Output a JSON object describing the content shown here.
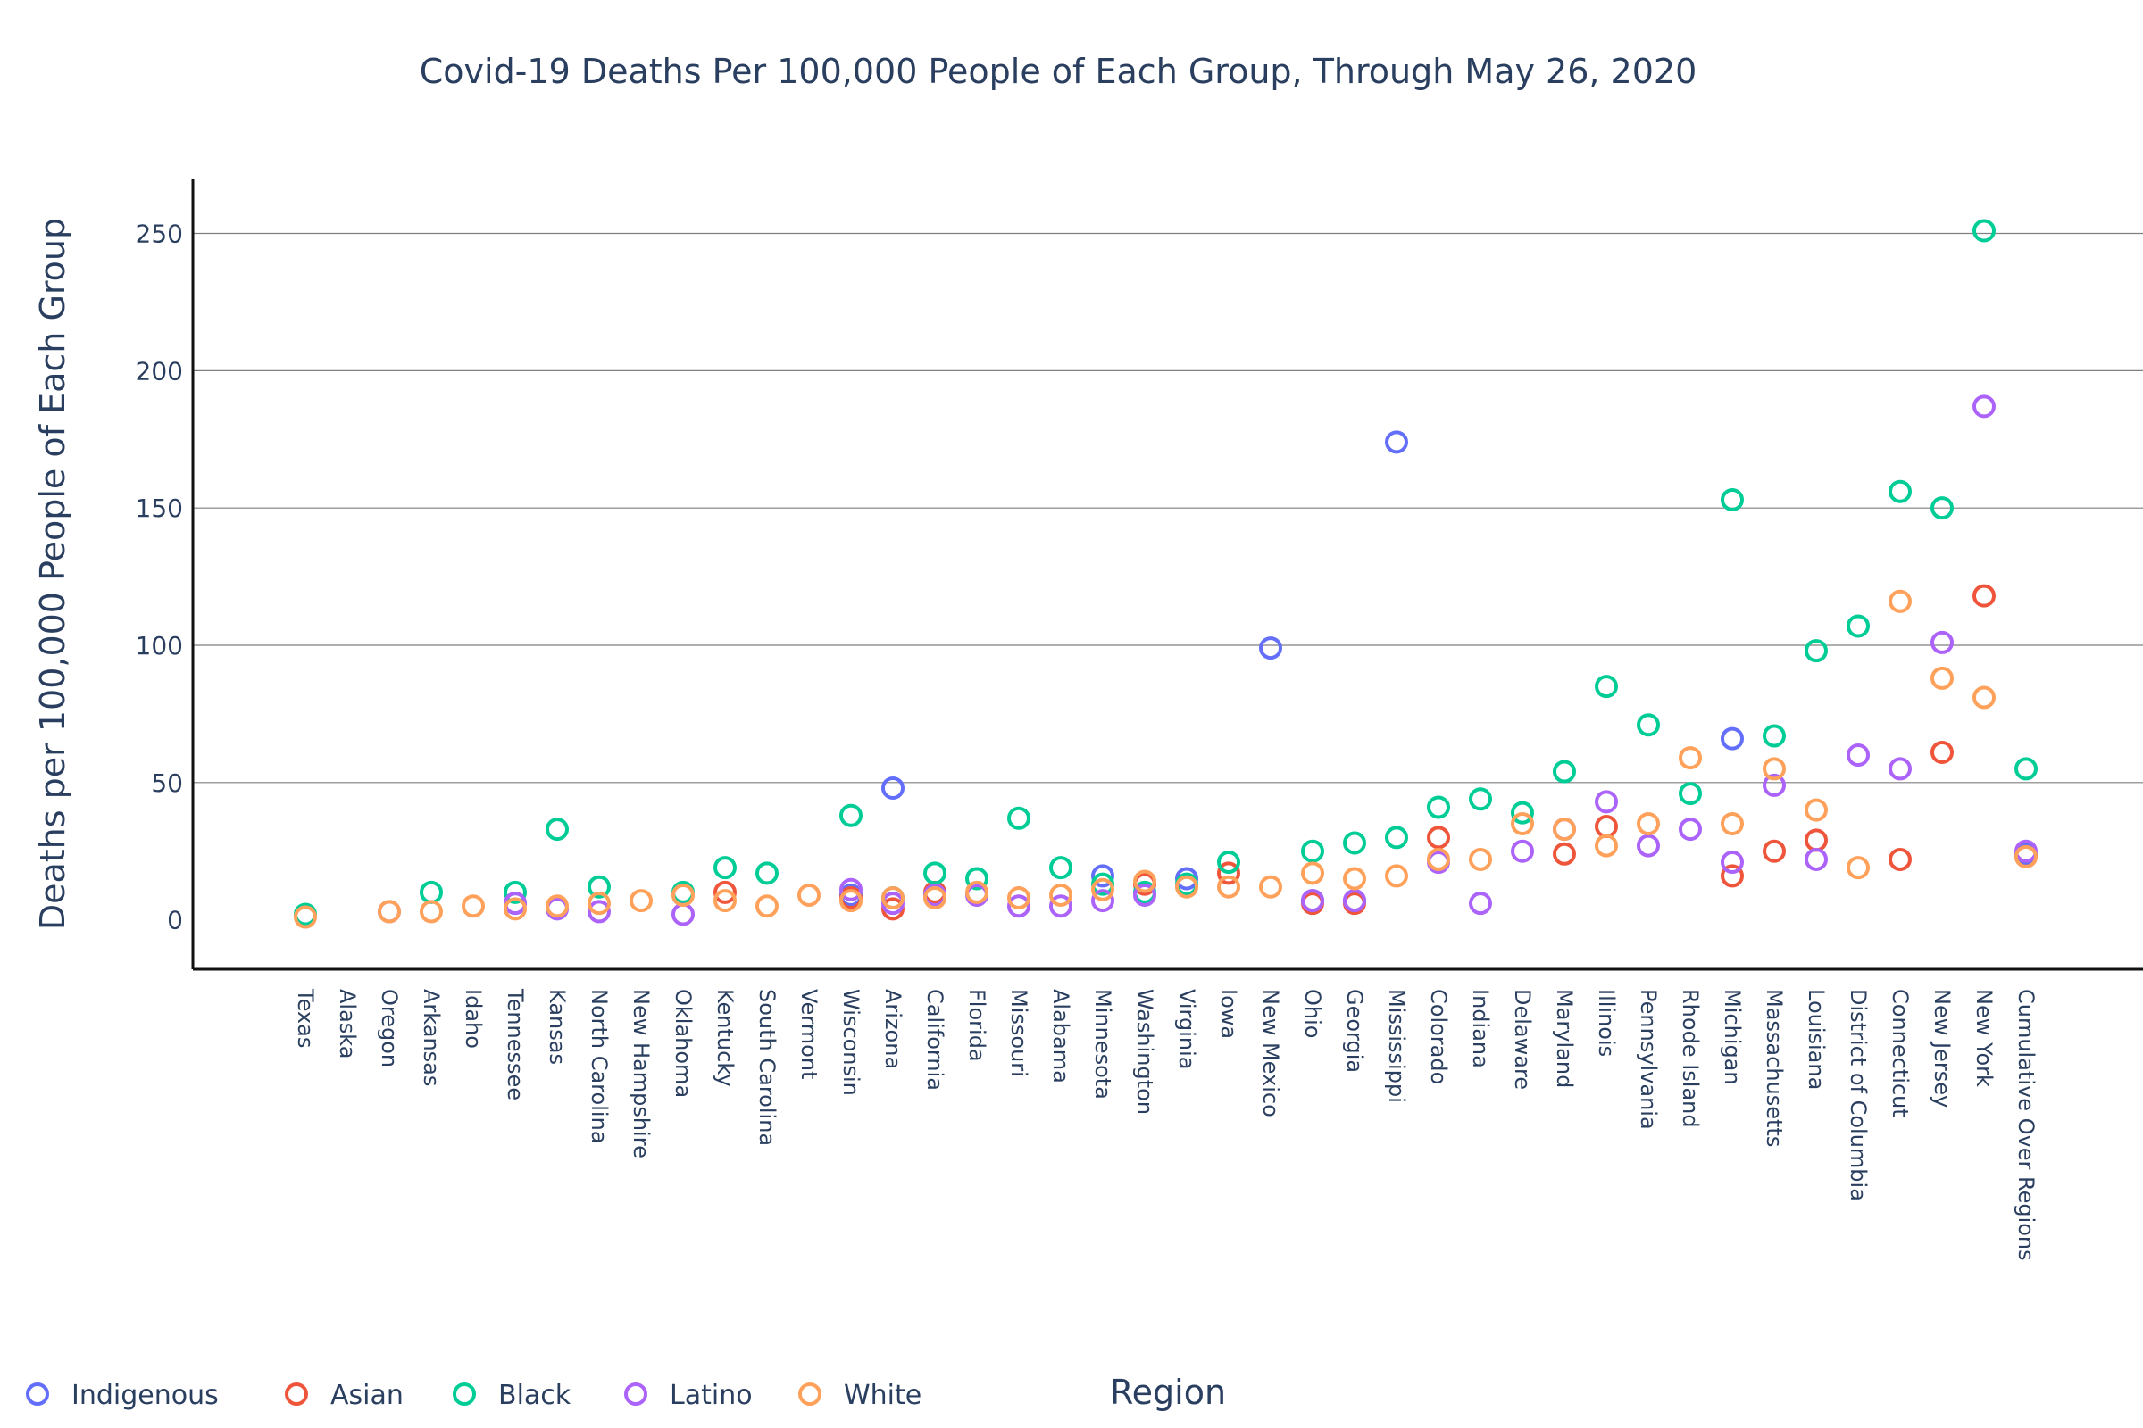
{
  "chart_data": {
    "type": "scatter",
    "title": "Covid-19 Deaths Per 100,000 People of Each Group, Through May 26, 2020",
    "xlabel": "Region",
    "ylabel": "Deaths per 100,000 People of Each Group",
    "ylim": [
      -18,
      270
    ],
    "yticks": [
      0,
      50,
      100,
      150,
      200,
      250
    ],
    "grid": true,
    "legend_position": "bottom-left",
    "categories": [
      "Texas",
      "Alaska",
      "Oregon",
      "Arkansas",
      "Idaho",
      "Tennessee",
      "Kansas",
      "North Carolina",
      "New Hampshire",
      "Oklahoma",
      "Kentucky",
      "South Carolina",
      "Vermont",
      "Wisconsin",
      "Arizona",
      "California",
      "Florida",
      "Missouri",
      "Alabama",
      "Minnesota",
      "Washington",
      "Virginia",
      "Iowa",
      "New Mexico",
      "Ohio",
      "Georgia",
      "Mississippi",
      "Colorado",
      "Indiana",
      "Delaware",
      "Maryland",
      "Illinois",
      "Pennsylvania",
      "Rhode Island",
      "Michigan",
      "Massachusetts",
      "Louisiana",
      "District of Columbia",
      "Connecticut",
      "New Jersey",
      "New York",
      "Cumulative Over Regions"
    ],
    "series": [
      {
        "name": "Indigenous",
        "color": "#636efa",
        "points": [
          [
            "Tennessee",
            6
          ],
          [
            "Wisconsin",
            9
          ],
          [
            "Arizona",
            48
          ],
          [
            "Minnesota",
            16
          ],
          [
            "Virginia",
            15
          ],
          [
            "New Mexico",
            99
          ],
          [
            "Ohio",
            7
          ],
          [
            "Georgia",
            7
          ],
          [
            "Mississippi",
            174
          ],
          [
            "Michigan",
            66
          ],
          [
            "Cumulative Over Regions",
            24
          ]
        ]
      },
      {
        "name": "Asian",
        "color": "#ef553b",
        "points": [
          [
            "Kentucky",
            10
          ],
          [
            "Wisconsin",
            8
          ],
          [
            "Arizona",
            4
          ],
          [
            "California",
            10
          ],
          [
            "Washington",
            13
          ],
          [
            "Iowa",
            17
          ],
          [
            "Ohio",
            6
          ],
          [
            "Georgia",
            6
          ],
          [
            "Colorado",
            30
          ],
          [
            "Maryland",
            24
          ],
          [
            "Illinois",
            34
          ],
          [
            "Michigan",
            16
          ],
          [
            "Massachusetts",
            25
          ],
          [
            "Louisiana",
            29
          ],
          [
            "Connecticut",
            22
          ],
          [
            "New Jersey",
            61
          ],
          [
            "New York",
            118
          ],
          [
            "Cumulative Over Regions",
            23
          ]
        ]
      },
      {
        "name": "Black",
        "color": "#00cc96",
        "points": [
          [
            "Texas",
            2
          ],
          [
            "Arkansas",
            10
          ],
          [
            "Tennessee",
            10
          ],
          [
            "Kansas",
            33
          ],
          [
            "North Carolina",
            12
          ],
          [
            "Oklahoma",
            10
          ],
          [
            "Kentucky",
            19
          ],
          [
            "South Carolina",
            17
          ],
          [
            "Wisconsin",
            38
          ],
          [
            "Arizona",
            8
          ],
          [
            "California",
            17
          ],
          [
            "Florida",
            15
          ],
          [
            "Missouri",
            37
          ],
          [
            "Alabama",
            19
          ],
          [
            "Minnesota",
            13
          ],
          [
            "Washington",
            10
          ],
          [
            "Virginia",
            13
          ],
          [
            "Iowa",
            21
          ],
          [
            "Ohio",
            25
          ],
          [
            "Georgia",
            28
          ],
          [
            "Mississippi",
            30
          ],
          [
            "Colorado",
            41
          ],
          [
            "Indiana",
            44
          ],
          [
            "Delaware",
            39
          ],
          [
            "Maryland",
            54
          ],
          [
            "Illinois",
            85
          ],
          [
            "Pennsylvania",
            71
          ],
          [
            "Rhode Island",
            46
          ],
          [
            "Michigan",
            153
          ],
          [
            "Massachusetts",
            67
          ],
          [
            "Louisiana",
            98
          ],
          [
            "District of Columbia",
            107
          ],
          [
            "Connecticut",
            156
          ],
          [
            "New Jersey",
            150
          ],
          [
            "New York",
            251
          ],
          [
            "Cumulative Over Regions",
            55
          ]
        ]
      },
      {
        "name": "Latino",
        "color": "#ab63fa",
        "points": [
          [
            "Oregon",
            3
          ],
          [
            "Tennessee",
            6
          ],
          [
            "Kansas",
            4
          ],
          [
            "North Carolina",
            3
          ],
          [
            "Oklahoma",
            2
          ],
          [
            "Wisconsin",
            11
          ],
          [
            "Arizona",
            6
          ],
          [
            "California",
            9
          ],
          [
            "Florida",
            9
          ],
          [
            "Missouri",
            5
          ],
          [
            "Alabama",
            5
          ],
          [
            "Minnesota",
            7
          ],
          [
            "Washington",
            9
          ],
          [
            "Ohio",
            7
          ],
          [
            "Georgia",
            7
          ],
          [
            "Colorado",
            21
          ],
          [
            "Indiana",
            6
          ],
          [
            "Delaware",
            25
          ],
          [
            "Maryland",
            33
          ],
          [
            "Illinois",
            43
          ],
          [
            "Pennsylvania",
            27
          ],
          [
            "Rhode Island",
            33
          ],
          [
            "Michigan",
            21
          ],
          [
            "Massachusetts",
            49
          ],
          [
            "Louisiana",
            22
          ],
          [
            "District of Columbia",
            60
          ],
          [
            "Connecticut",
            55
          ],
          [
            "New Jersey",
            101
          ],
          [
            "New York",
            187
          ],
          [
            "Cumulative Over Regions",
            25
          ]
        ]
      },
      {
        "name": "White",
        "color": "#ffa15a",
        "points": [
          [
            "Texas",
            1
          ],
          [
            "Oregon",
            3
          ],
          [
            "Arkansas",
            3
          ],
          [
            "Idaho",
            5
          ],
          [
            "Tennessee",
            4
          ],
          [
            "Kansas",
            5
          ],
          [
            "North Carolina",
            6
          ],
          [
            "New Hampshire",
            7
          ],
          [
            "Oklahoma",
            9
          ],
          [
            "Kentucky",
            7
          ],
          [
            "South Carolina",
            5
          ],
          [
            "Vermont",
            9
          ],
          [
            "Wisconsin",
            7
          ],
          [
            "Arizona",
            8
          ],
          [
            "California",
            8
          ],
          [
            "Florida",
            10
          ],
          [
            "Missouri",
            8
          ],
          [
            "Alabama",
            9
          ],
          [
            "Minnesota",
            11
          ],
          [
            "Washington",
            14
          ],
          [
            "Virginia",
            12
          ],
          [
            "Iowa",
            12
          ],
          [
            "New Mexico",
            12
          ],
          [
            "Ohio",
            17
          ],
          [
            "Georgia",
            15
          ],
          [
            "Mississippi",
            16
          ],
          [
            "Colorado",
            22
          ],
          [
            "Indiana",
            22
          ],
          [
            "Delaware",
            35
          ],
          [
            "Maryland",
            33
          ],
          [
            "Illinois",
            27
          ],
          [
            "Pennsylvania",
            35
          ],
          [
            "Rhode Island",
            59
          ],
          [
            "Michigan",
            35
          ],
          [
            "Massachusetts",
            55
          ],
          [
            "Louisiana",
            40
          ],
          [
            "District of Columbia",
            19
          ],
          [
            "Connecticut",
            116
          ],
          [
            "New Jersey",
            88
          ],
          [
            "New York",
            81
          ],
          [
            "Cumulative Over Regions",
            23
          ]
        ]
      }
    ]
  }
}
